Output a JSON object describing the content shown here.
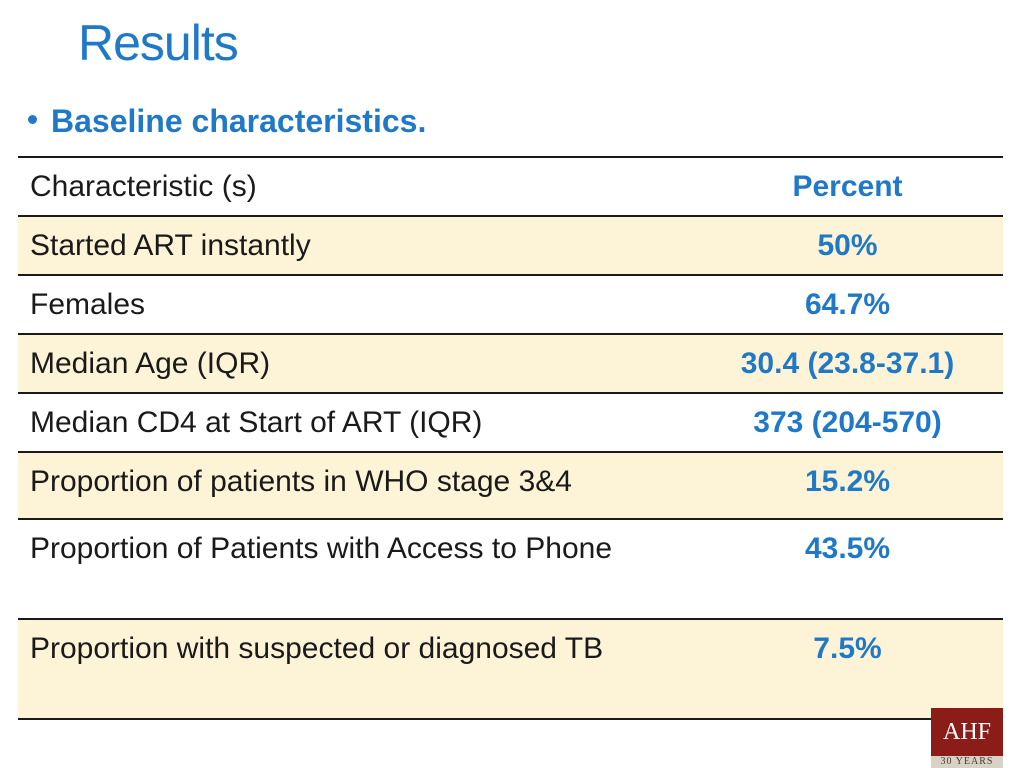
{
  "title": "Results",
  "bullet": "Baseline characteristics.",
  "table": {
    "header": {
      "characteristic": "Characteristic (s)",
      "value": "Percent"
    },
    "rows": [
      {
        "label": "Started ART instantly",
        "value": "50%"
      },
      {
        "label": "Females",
        "value": "64.7%"
      },
      {
        "label": "Median Age (IQR)",
        "value": "30.4 (23.8-37.1)"
      },
      {
        "label": "Median CD4 at Start of ART (IQR)",
        "value": "373 (204-570)"
      },
      {
        "label": "Proportion of patients in WHO stage 3&4",
        "value": "15.2%"
      },
      {
        "label": "Proportion of Patients with Access to Phone",
        "value": "43.5%"
      },
      {
        "label": "Proportion with suspected or diagnosed TB",
        "value": "7.5%"
      }
    ]
  },
  "logo": {
    "main": "AHF",
    "sub": "30 YEARS"
  },
  "colors": {
    "accent": "#1f78c8",
    "row_highlight": "#fdf3d6",
    "logo_background": "#8b1c17"
  }
}
